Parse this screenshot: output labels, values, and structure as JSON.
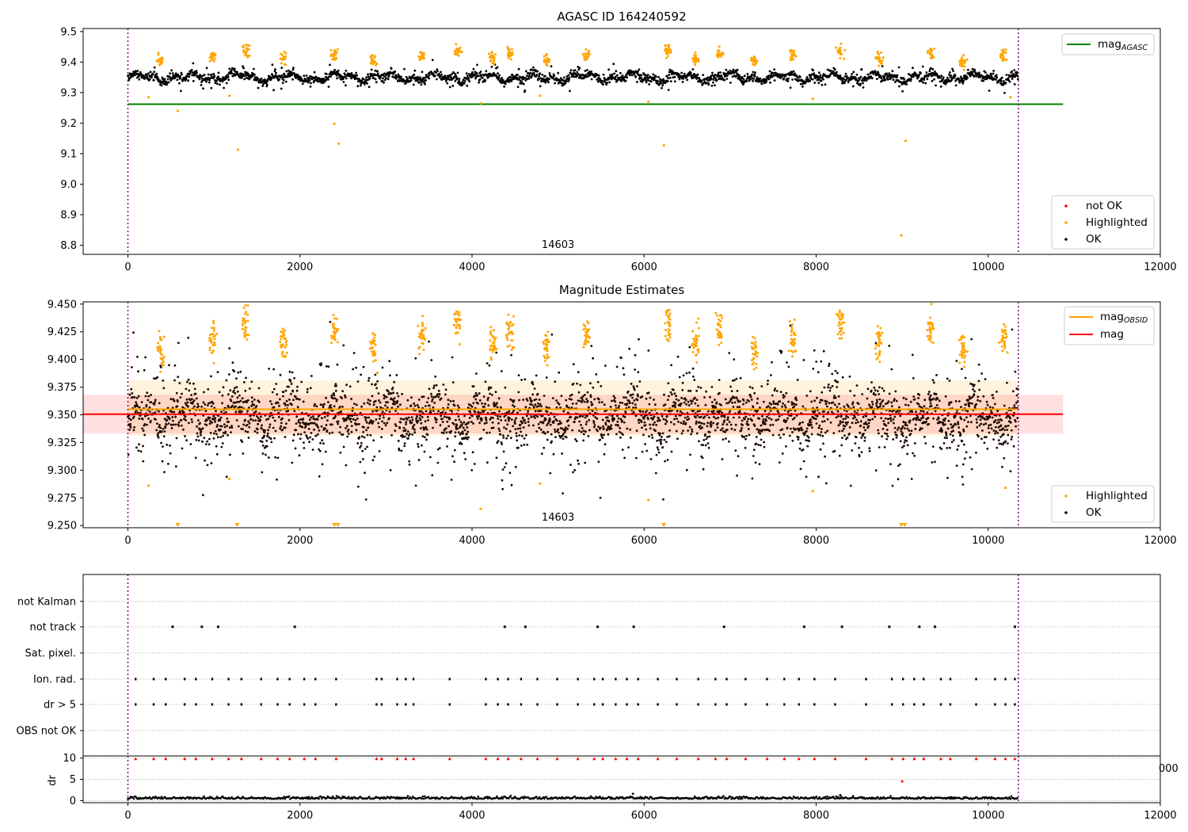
{
  "chart_data": [
    {
      "type": "scatter",
      "title": "AGASC ID 164240592",
      "xlim": [
        -520,
        12000
      ],
      "ylim": [
        8.77,
        9.51
      ],
      "x_ticks": [
        "0",
        "2000",
        "4000",
        "6000",
        "8000",
        "10000",
        "12000"
      ],
      "y_ticks": [
        "9.5",
        "9.4",
        "9.3",
        "9.2",
        "9.1",
        "9.0",
        "8.9",
        "8.8"
      ],
      "obsid_boundaries": [
        0,
        10350
      ],
      "obsid_label": "14603",
      "obsid_label_x": 5000,
      "reference_line": {
        "name": "mag_AGASC",
        "value": 9.262,
        "x_range": [
          0,
          10870
        ],
        "color": "#008000"
      },
      "ok_band": {
        "center": 9.35,
        "half_width": 0.018,
        "noise": 0.008
      },
      "highlight_clusters": [
        380,
        990,
        1370,
        1810,
        2400,
        2850,
        3420,
        3830,
        4240,
        4440,
        4870,
        5330,
        6280,
        6600,
        6880,
        7280,
        7730,
        8280,
        8730,
        9330,
        9710,
        10180
      ],
      "outliers": [
        [
          240,
          9.285
        ],
        [
          580,
          9.24
        ],
        [
          1180,
          9.29
        ],
        [
          1280,
          9.113
        ],
        [
          2400,
          9.198
        ],
        [
          2450,
          9.133
        ],
        [
          4100,
          9.265
        ],
        [
          4790,
          9.29
        ],
        [
          6050,
          9.27
        ],
        [
          6230,
          9.127
        ],
        [
          7960,
          9.28
        ],
        [
          8990,
          8.832
        ],
        [
          9040,
          9.142
        ],
        [
          10260,
          9.285
        ]
      ],
      "legend_top": [
        {
          "label": "mag",
          "subscript": "AGASC",
          "color": "#008000"
        }
      ],
      "legend_bottom": [
        {
          "label": "not OK",
          "color": "#ff0000"
        },
        {
          "label": "Highlighted",
          "color": "#ffa500"
        },
        {
          "label": "OK",
          "color": "#000000"
        }
      ]
    },
    {
      "type": "scatter",
      "title": "Magnitude Estimates",
      "xlim": [
        -520,
        12000
      ],
      "ylim": [
        9.248,
        9.452
      ],
      "x_ticks": [
        "0",
        "2000",
        "4000",
        "6000",
        "8000",
        "10000",
        "12000"
      ],
      "y_ticks": [
        "9.450",
        "9.425",
        "9.400",
        "9.375",
        "9.350",
        "9.325",
        "9.300",
        "9.275",
        "9.250"
      ],
      "obsid_boundaries": [
        0,
        10350
      ],
      "obsid_label": "14603",
      "obsid_label_x": 5000,
      "mag_line": {
        "name": "mag",
        "value": 9.3505,
        "band": [
          9.333,
          9.368
        ],
        "x_range": [
          -520,
          10870
        ],
        "color": "#ff0000"
      },
      "mag_obsid_line": {
        "name": "mag_OBSID",
        "value": 9.355,
        "band": [
          9.331,
          9.381
        ],
        "x_range": [
          0,
          10350
        ],
        "color": "#ffa500"
      },
      "ok_band": {
        "center": 9.349,
        "half_width": 0.016,
        "noise": 0.012
      },
      "highlight_clusters": [
        380,
        990,
        1370,
        1810,
        2400,
        2850,
        3420,
        3830,
        4240,
        4440,
        4870,
        5330,
        6280,
        6600,
        6880,
        7280,
        7730,
        8280,
        8730,
        9330,
        9710,
        10180
      ],
      "outliers": [
        [
          240,
          9.286
        ],
        [
          1180,
          9.292
        ],
        [
          4100,
          9.265
        ],
        [
          4790,
          9.288
        ],
        [
          6050,
          9.273
        ],
        [
          7960,
          9.281
        ],
        [
          10200,
          9.284
        ]
      ],
      "clipped_markers": [
        580,
        1270,
        2400,
        2440,
        6230,
        8990,
        9030
      ],
      "legend_top": [
        {
          "label": "mag",
          "subscript": "OBSID",
          "color": "#ffa500"
        },
        {
          "label": "mag",
          "subscript": "",
          "color": "#ff0000"
        }
      ],
      "legend_bottom": [
        {
          "label": "Highlighted",
          "color": "#ffa500"
        },
        {
          "label": "OK",
          "color": "#000000"
        }
      ]
    },
    {
      "type": "scatter",
      "title": "",
      "xlim": [
        -520,
        12000
      ],
      "x_ticks": [
        "0",
        "2000",
        "4000",
        "6000",
        "8000",
        "10000",
        "12000"
      ],
      "categories": [
        "not Kalman",
        "not track",
        "Sat. pixel.",
        "Ion. rad.",
        "dr > 5",
        "OBS not OK"
      ],
      "obsid_boundaries": [
        0,
        10350
      ],
      "not_track_x": [
        520,
        860,
        1050,
        1940,
        4380,
        4620,
        5460,
        5880,
        6930,
        7860,
        8300,
        8850,
        9200,
        9380,
        10310
      ],
      "ion_rad_x": [
        90,
        300,
        440,
        660,
        790,
        980,
        1170,
        1320,
        1550,
        1740,
        1880,
        2050,
        2180,
        2420,
        2890,
        2950,
        3130,
        3230,
        3320,
        3740,
        4160,
        4300,
        4420,
        4570,
        4760,
        4990,
        5230,
        5420,
        5520,
        5670,
        5800,
        5930,
        6160,
        6380,
        6630,
        6830,
        6960,
        7180,
        7430,
        7630,
        7800,
        7980,
        8220,
        8580,
        8880,
        9010,
        9140,
        9250,
        9450,
        9560,
        9860,
        10080,
        10200,
        10310
      ],
      "dr_panel": {
        "ylabel": "dr",
        "y_ticks": [
          "10",
          "5",
          "0"
        ],
        "ylim": [
          -0.5,
          10.5
        ],
        "clip_value": 9.9,
        "baseline": 0.4,
        "spike": [
          9000,
          4.5
        ],
        "right_edge_label": "000"
      }
    }
  ]
}
